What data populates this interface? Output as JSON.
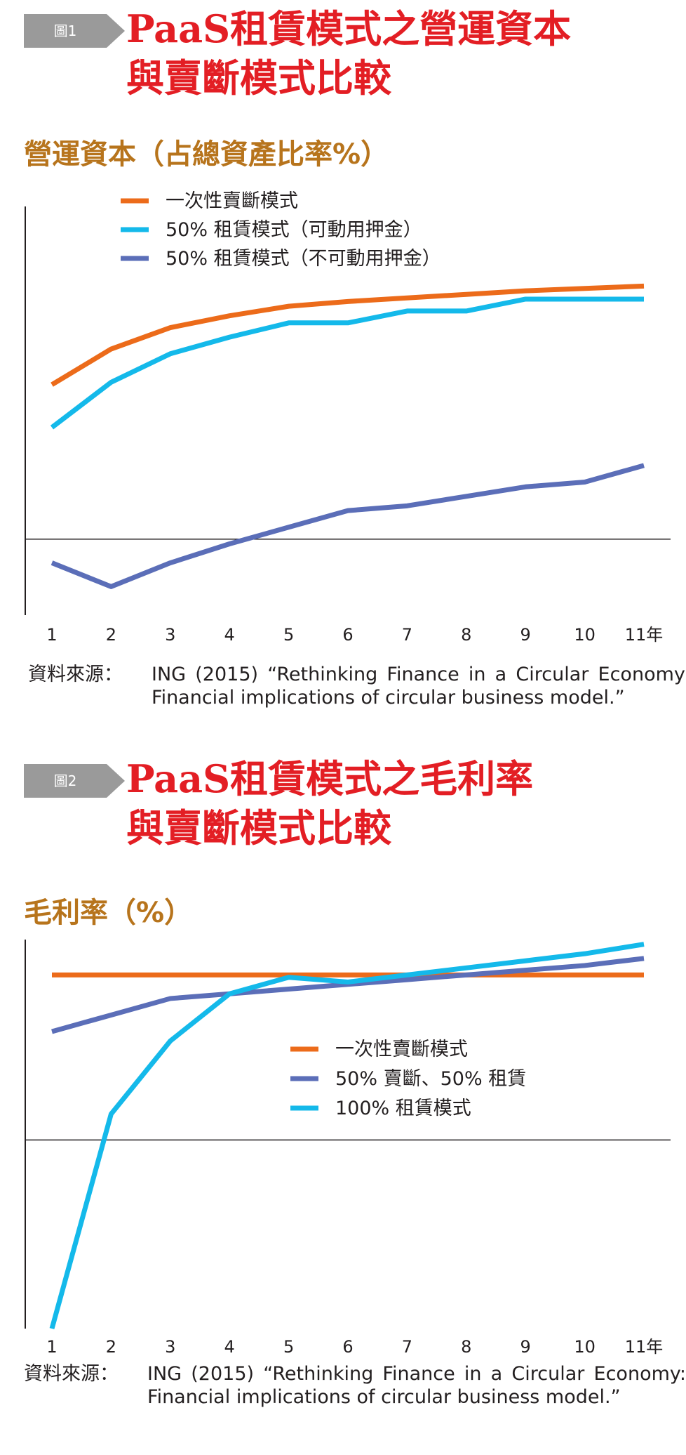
{
  "figures": [
    {
      "badge": "圖1",
      "title_lines": [
        "PaaS租賃模式之營運資本",
        "與賣斷模式比較"
      ],
      "subtitle": "營運資本（占總資產比率%）",
      "source_label": "資料來源：",
      "source_text": "ING (2015) “Rethinking Finance in a Circular Economy: Financial implications of circular business model.”",
      "colors": {
        "orange": "#ec6b1a",
        "cyan": "#14b9ea",
        "blue": "#5b6eb8"
      }
    },
    {
      "badge": "圖2",
      "title_lines": [
        "PaaS租賃模式之毛利率",
        "與賣斷模式比較"
      ],
      "subtitle": "毛利率（%）",
      "source_label": "資料來源：",
      "source_text": "ING (2015) “Rethinking Finance in a Circular Economy: Financial implications of circular business model.”",
      "colors": {
        "orange": "#ec6b1a",
        "blue": "#5b6eb8",
        "cyan": "#14b9ea"
      }
    }
  ],
  "chart_data": [
    {
      "type": "line",
      "title": "營運資本（占總資產比率%）",
      "xlabel": "",
      "ylabel": "",
      "x": [
        1,
        2,
        3,
        4,
        5,
        6,
        7,
        8,
        9,
        10,
        11
      ],
      "tick_labels": [
        "1",
        "2",
        "3",
        "4",
        "5",
        "6",
        "7",
        "8",
        "9",
        "10",
        "11年"
      ],
      "xlim": [
        1,
        11
      ],
      "ylim": [
        -32,
        140
      ],
      "grid": false,
      "legend_position": "top-left",
      "series": [
        {
          "name": "一次性賣斷模式",
          "color": "#ec6b1a",
          "values": [
            65,
            80,
            89,
            94,
            98,
            100,
            101.5,
            103,
            104.5,
            105.5,
            106.5
          ]
        },
        {
          "name": "50% 租賃模式（可動用押金）",
          "color": "#14b9ea",
          "values": [
            47,
            66,
            78,
            85,
            91,
            91,
            96,
            96,
            101,
            101,
            101
          ]
        },
        {
          "name": "50% 租賃模式（不可動用押金）",
          "color": "#5b6eb8",
          "values": [
            -10,
            -20,
            -10,
            -2,
            5,
            12,
            14,
            18,
            22,
            24,
            31
          ]
        }
      ]
    },
    {
      "type": "line",
      "title": "毛利率（%）",
      "xlabel": "",
      "ylabel": "",
      "x": [
        1,
        2,
        3,
        4,
        5,
        6,
        7,
        8,
        9,
        10,
        11
      ],
      "tick_labels": [
        "1",
        "2",
        "3",
        "4",
        "5",
        "6",
        "7",
        "8",
        "9",
        "10",
        "11年"
      ],
      "xlim": [
        1,
        11
      ],
      "ylim": [
        -80,
        85
      ],
      "grid": false,
      "legend_position": "center-right",
      "series": [
        {
          "name": "一次性賣斷模式",
          "color": "#ec6b1a",
          "values": [
            70,
            70,
            70,
            70,
            70,
            70,
            70,
            70,
            70,
            70,
            70
          ]
        },
        {
          "name": "50% 賣斷、50% 租賃",
          "color": "#5b6eb8",
          "values": [
            46,
            53,
            60,
            62,
            64,
            66,
            68,
            70,
            72,
            74,
            77
          ]
        },
        {
          "name": "100% 租賃模式",
          "color": "#14b9ea",
          "values": [
            -80,
            11,
            42,
            62,
            69,
            67,
            70,
            73,
            76,
            79,
            83
          ]
        }
      ]
    }
  ]
}
